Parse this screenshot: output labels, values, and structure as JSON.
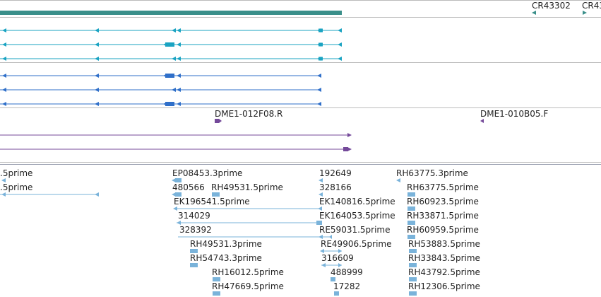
{
  "colors": {
    "gene_bar": "#3a8f8a",
    "cyan_transcript": "#1aa3c2",
    "blue_transcript": "#2f6fc9",
    "purple_read": "#74499a",
    "est_light": "#7ab3da",
    "separator": "#bbbbbb",
    "label_text": "#222222"
  },
  "gene_track": {
    "labels": [
      {
        "id": "cr43302",
        "text": "CR43302"
      },
      {
        "id": "cr43-cut",
        "text": "CR43"
      }
    ]
  },
  "read_track": {
    "labels": [
      {
        "id": "dme1-012f08",
        "text": "DME1-012F08.R"
      },
      {
        "id": "dme1-010b05",
        "text": "DME1-010B05.F"
      }
    ]
  },
  "est_track": {
    "labels": [
      {
        "id": "t01",
        "text": ".5prime"
      },
      {
        "id": "t02",
        "text": ".5prime"
      },
      {
        "id": "t03",
        "text": "EP08453.3prime"
      },
      {
        "id": "t04",
        "text": "480566"
      },
      {
        "id": "t05",
        "text": "RH49531.5prime"
      },
      {
        "id": "t06",
        "text": "EK196541.5prime"
      },
      {
        "id": "t07",
        "text": "314029"
      },
      {
        "id": "t08",
        "text": "328392"
      },
      {
        "id": "t09",
        "text": "RH49531.3prime"
      },
      {
        "id": "t10",
        "text": "RH54743.3prime"
      },
      {
        "id": "t11",
        "text": "RH16012.5prime"
      },
      {
        "id": "t12",
        "text": "RH47669.5prime"
      },
      {
        "id": "t13",
        "text": "192649"
      },
      {
        "id": "t14",
        "text": "328166"
      },
      {
        "id": "t15",
        "text": "EK140816.5prime"
      },
      {
        "id": "t16",
        "text": "EK164053.5prime"
      },
      {
        "id": "t17",
        "text": "RE59031.5prime"
      },
      {
        "id": "t18",
        "text": "RE49906.5prime"
      },
      {
        "id": "t19",
        "text": "316609"
      },
      {
        "id": "t20",
        "text": "488999"
      },
      {
        "id": "t21",
        "text": "17282"
      },
      {
        "id": "t22",
        "text": "RH63775.3prime"
      },
      {
        "id": "t23",
        "text": "RH63775.5prime"
      },
      {
        "id": "t24",
        "text": "RH60923.5prime"
      },
      {
        "id": "t25",
        "text": "RH33871.5prime"
      },
      {
        "id": "t26",
        "text": "RH60959.5prime"
      },
      {
        "id": "t27",
        "text": "RH53883.5prime"
      },
      {
        "id": "t28",
        "text": "RH33843.5prime"
      },
      {
        "id": "t29",
        "text": "RH43792.5prime"
      },
      {
        "id": "t30",
        "text": "RH12306.5prime"
      }
    ]
  }
}
